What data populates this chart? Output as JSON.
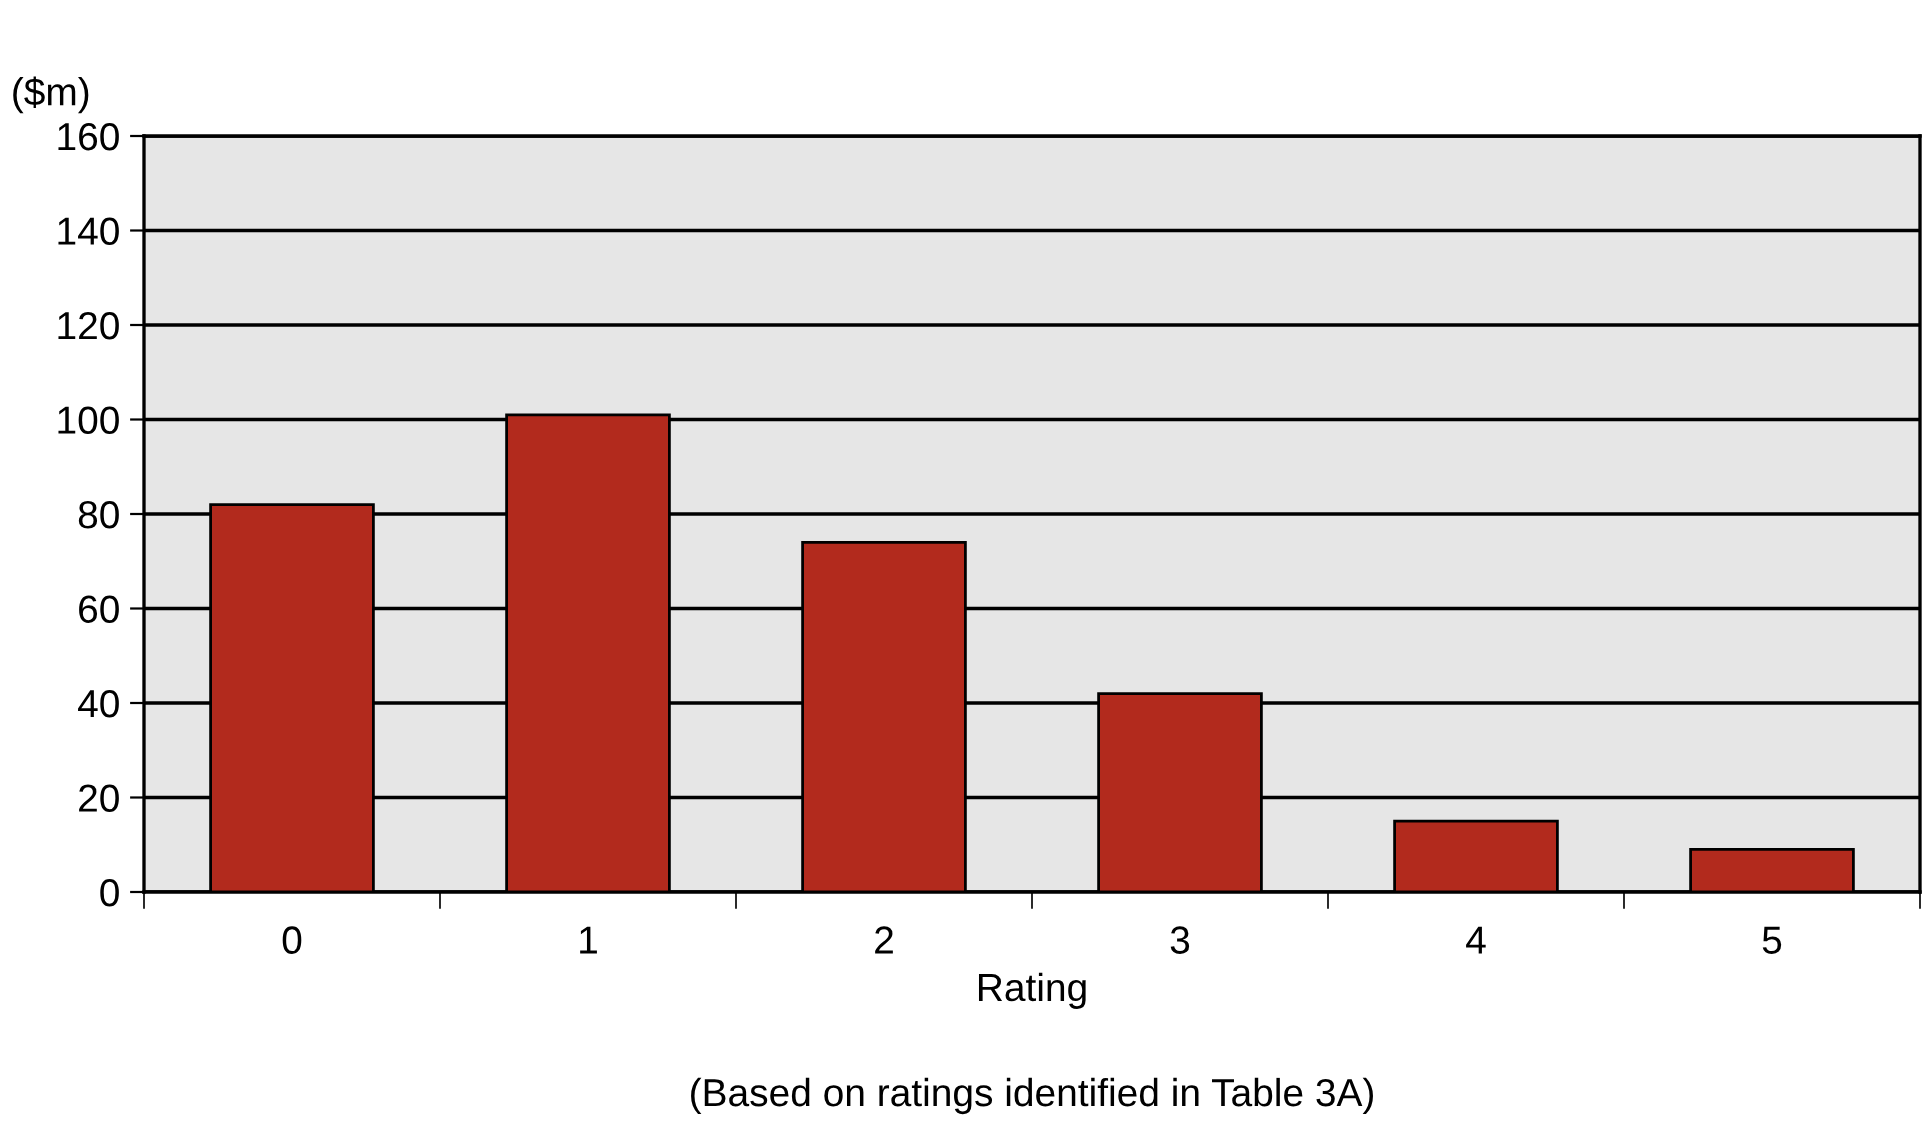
{
  "chart_data": {
    "type": "bar",
    "ylabel": "($m)",
    "xlabel": "Rating",
    "annotations": [
      "(Based on ratings identified in Table 3A)"
    ],
    "categories": [
      "0",
      "1",
      "2",
      "3",
      "4",
      "5"
    ],
    "values": [
      82,
      101,
      74,
      42,
      15,
      9
    ],
    "color": "#b22a1d",
    "ylim": [
      0,
      160
    ],
    "yticks": [
      0,
      20,
      40,
      60,
      80,
      100,
      120,
      140,
      160
    ],
    "grid": "y"
  }
}
